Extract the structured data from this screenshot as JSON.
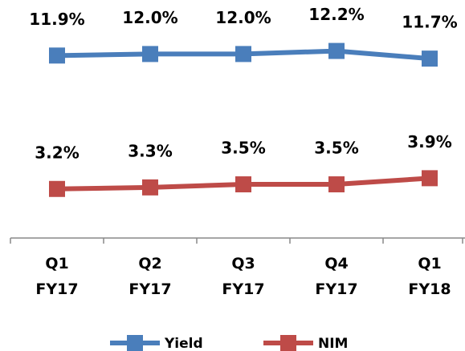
{
  "chart_data": {
    "type": "line",
    "categories": [
      "Q1 FY17",
      "Q2 FY17",
      "Q3 FY17",
      "Q4 FY17",
      "Q1 FY18"
    ],
    "series": [
      {
        "name": "Yield",
        "color": "#4a7ebb",
        "values": [
          11.9,
          12.0,
          12.0,
          12.2,
          11.7
        ],
        "value_labels": [
          "11.9%",
          "12.0%",
          "12.0%",
          "12.2%",
          "11.7%"
        ]
      },
      {
        "name": "NIM",
        "color": "#be4b48",
        "values": [
          3.2,
          3.3,
          3.5,
          3.5,
          3.9
        ],
        "value_labels": [
          "3.2%",
          "3.3%",
          "3.5%",
          "3.5%",
          "3.9%"
        ]
      }
    ],
    "ylim": [
      0,
      15
    ],
    "legend": "bottom"
  }
}
